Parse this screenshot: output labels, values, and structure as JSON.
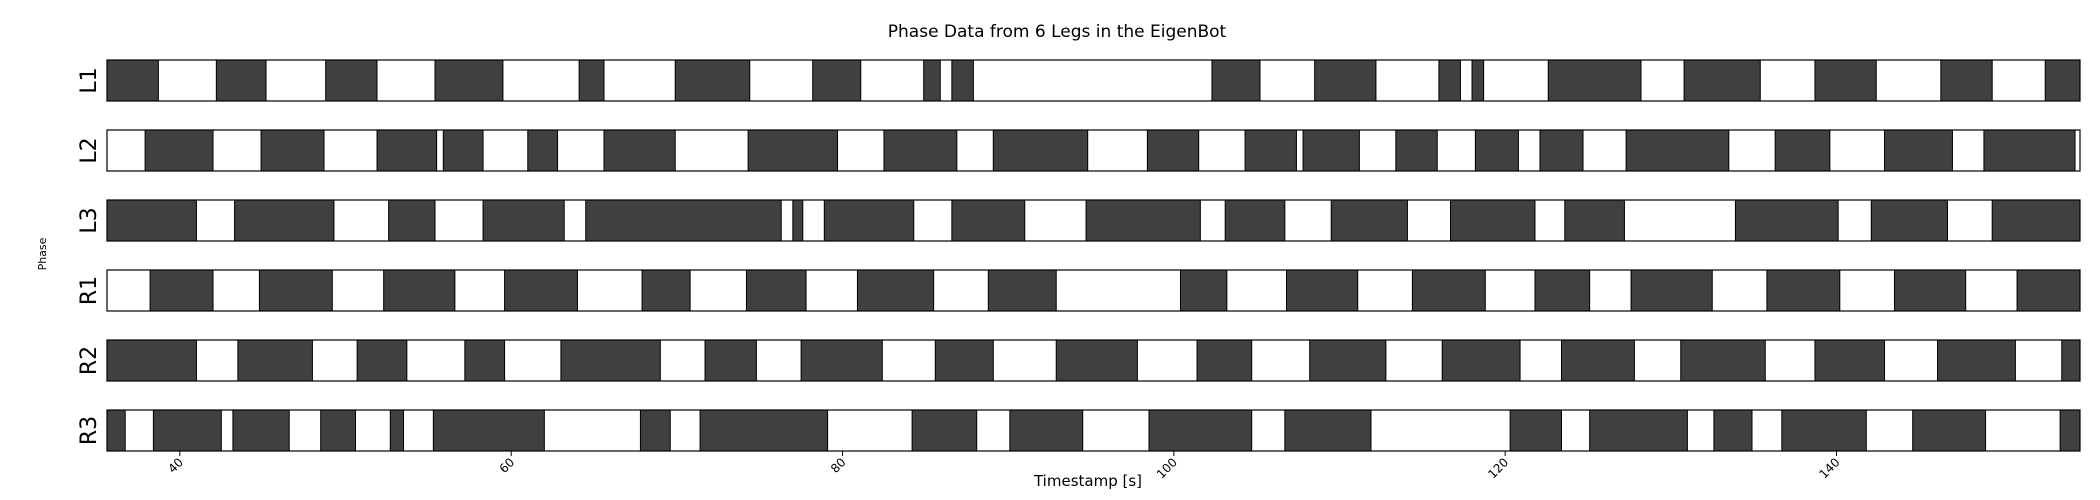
{
  "chart_data": {
    "type": "broken_barh",
    "title": "Phase Data from 6 Legs in the EigenBot",
    "xlabel": "Timestamp [s]",
    "ylabel": "Phase",
    "xlim": [
      35.6,
      154.7
    ],
    "xticks": [
      40,
      60,
      80,
      100,
      120,
      140
    ],
    "colors": {
      "stance": "#404040",
      "swing": "#ffffff",
      "edge": "#000000"
    },
    "legs": [
      {
        "name": "L1",
        "segments": [
          [
            35.6,
            38.7
          ],
          [
            42.2,
            45.2
          ],
          [
            48.8,
            51.9
          ],
          [
            55.4,
            59.5
          ],
          [
            64.1,
            65.6
          ],
          [
            69.9,
            74.4
          ],
          [
            78.2,
            81.1
          ],
          [
            84.9,
            85.9
          ],
          [
            86.6,
            87.9
          ],
          [
            102.3,
            105.2
          ],
          [
            108.5,
            112.2
          ],
          [
            116.0,
            117.3
          ],
          [
            118.0,
            118.7
          ],
          [
            122.6,
            128.2
          ],
          [
            130.8,
            135.4
          ],
          [
            138.7,
            142.4
          ],
          [
            146.3,
            149.4
          ],
          [
            152.6,
            154.7
          ]
        ]
      },
      {
        "name": "L2",
        "segments": [
          [
            37.9,
            42.0
          ],
          [
            44.9,
            48.7
          ],
          [
            51.9,
            55.5
          ],
          [
            55.9,
            58.3
          ],
          [
            61.0,
            62.8
          ],
          [
            65.6,
            69.9
          ],
          [
            74.3,
            79.7
          ],
          [
            82.5,
            86.9
          ],
          [
            89.1,
            94.8
          ],
          [
            98.4,
            101.5
          ],
          [
            104.3,
            107.4
          ],
          [
            107.8,
            111.2
          ],
          [
            113.4,
            115.9
          ],
          [
            118.2,
            120.8
          ],
          [
            122.1,
            124.7
          ],
          [
            127.3,
            133.5
          ],
          [
            136.3,
            139.6
          ],
          [
            142.9,
            147.0
          ],
          [
            148.9,
            154.4
          ]
        ]
      },
      {
        "name": "L3",
        "segments": [
          [
            35.6,
            41.0
          ],
          [
            43.3,
            49.3
          ],
          [
            52.6,
            55.4
          ],
          [
            58.3,
            63.2
          ],
          [
            64.5,
            76.3
          ],
          [
            77.0,
            77.6
          ],
          [
            78.9,
            84.3
          ],
          [
            86.6,
            91.0
          ],
          [
            94.7,
            101.6
          ],
          [
            103.1,
            106.7
          ],
          [
            109.5,
            114.1
          ],
          [
            116.7,
            121.8
          ],
          [
            123.6,
            127.2
          ],
          [
            133.9,
            140.1
          ],
          [
            142.1,
            146.7
          ],
          [
            149.4,
            155.4
          ]
        ]
      },
      {
        "name": "R1",
        "segments": [
          [
            38.2,
            42.0
          ],
          [
            44.8,
            49.2
          ],
          [
            52.3,
            56.6
          ],
          [
            59.6,
            64.0
          ],
          [
            67.9,
            70.8
          ],
          [
            74.2,
            77.8
          ],
          [
            80.9,
            85.5
          ],
          [
            88.8,
            92.9
          ],
          [
            100.4,
            103.2
          ],
          [
            106.8,
            111.1
          ],
          [
            114.4,
            118.8
          ],
          [
            121.8,
            125.1
          ],
          [
            127.6,
            132.5
          ],
          [
            135.8,
            140.2
          ],
          [
            143.5,
            147.8
          ],
          [
            150.9,
            155.0
          ]
        ]
      },
      {
        "name": "R2",
        "segments": [
          [
            35.6,
            41.0
          ],
          [
            43.5,
            48.0
          ],
          [
            50.7,
            53.7
          ],
          [
            57.2,
            59.6
          ],
          [
            63.0,
            69.0
          ],
          [
            71.7,
            74.8
          ],
          [
            77.5,
            82.4
          ],
          [
            85.6,
            89.1
          ],
          [
            92.9,
            97.8
          ],
          [
            101.4,
            104.7
          ],
          [
            108.2,
            112.8
          ],
          [
            116.2,
            120.9
          ],
          [
            123.4,
            127.8
          ],
          [
            130.6,
            135.7
          ],
          [
            138.7,
            142.9
          ],
          [
            146.1,
            150.8
          ],
          [
            153.6,
            154.7
          ]
        ]
      },
      {
        "name": "R3",
        "segments": [
          [
            35.6,
            36.7
          ],
          [
            38.4,
            42.5
          ],
          [
            43.2,
            46.6
          ],
          [
            48.5,
            50.6
          ],
          [
            52.7,
            53.5
          ],
          [
            55.3,
            62.0
          ],
          [
            67.8,
            69.6
          ],
          [
            71.4,
            79.1
          ],
          [
            84.2,
            88.1
          ],
          [
            90.1,
            94.5
          ],
          [
            98.5,
            104.7
          ],
          [
            106.7,
            111.9
          ],
          [
            120.3,
            123.4
          ],
          [
            125.1,
            131.0
          ],
          [
            132.6,
            134.9
          ],
          [
            136.7,
            141.8
          ],
          [
            144.6,
            149.0
          ],
          [
            153.5,
            154.7
          ]
        ]
      }
    ]
  }
}
